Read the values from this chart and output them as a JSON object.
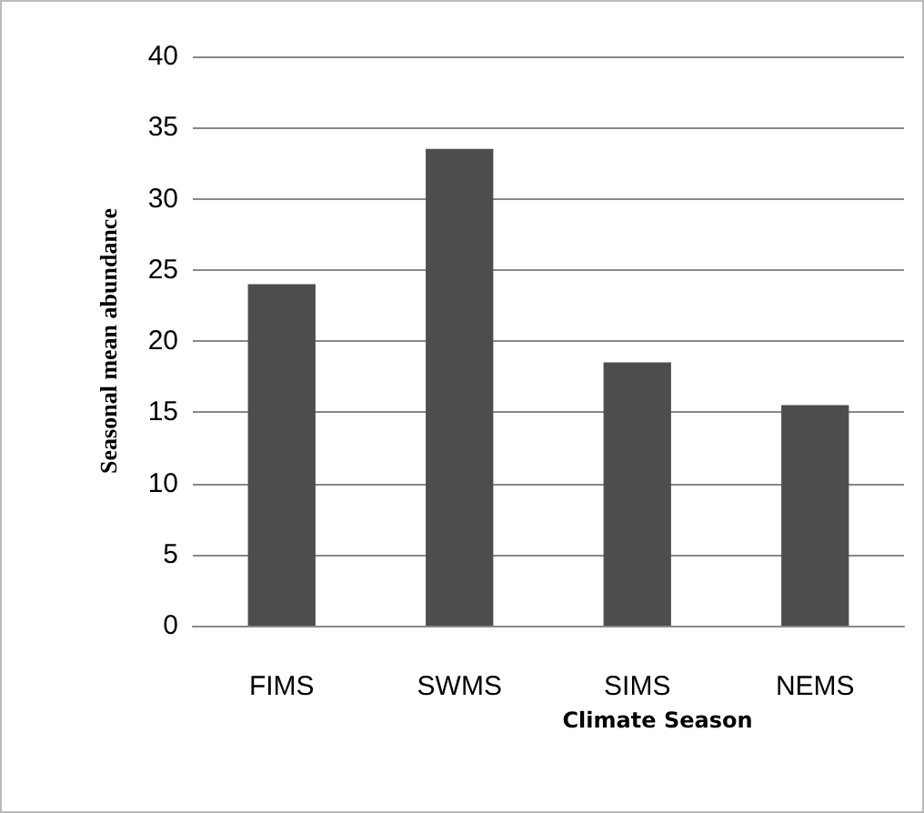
{
  "chart_data": {
    "type": "bar",
    "xlabel": "Climate Season",
    "ylabel": "Seasonal mean abundance",
    "categories": [
      "FIMS",
      "SWMS",
      "SIMS",
      "NEMS"
    ],
    "values": [
      24,
      33.5,
      18.5,
      15.5
    ],
    "color": "#4d4d4d",
    "ylim": [
      0,
      40
    ],
    "yticks": [
      0,
      5,
      10,
      15,
      20,
      25,
      30,
      35,
      40
    ],
    "grid": "y"
  }
}
